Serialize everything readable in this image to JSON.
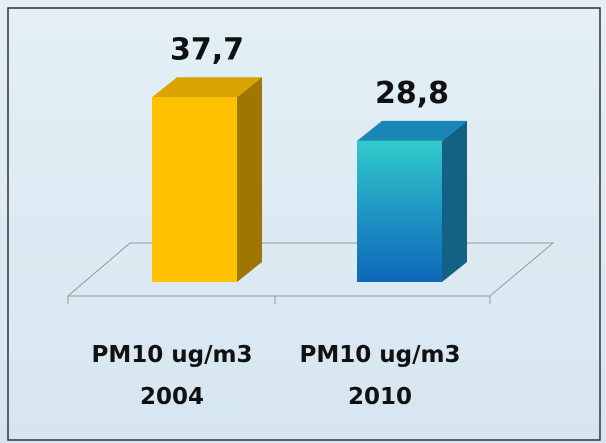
{
  "chart_data": {
    "type": "bar3d",
    "categories": [
      "PM10 ug/m3\n2004",
      "PM10  ug/m3\n2010"
    ],
    "values": [
      37.7,
      28.8
    ],
    "value_labels": [
      "37,7",
      "28,8"
    ],
    "colors": [
      "#ffc000",
      "#1e9ed6"
    ],
    "ylim": [
      0,
      40
    ]
  }
}
